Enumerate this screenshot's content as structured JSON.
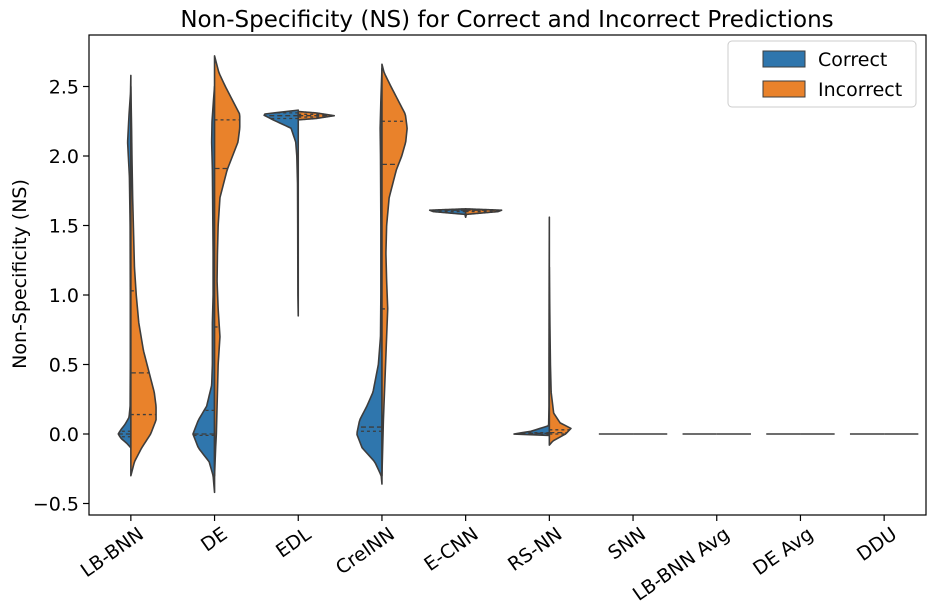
{
  "chart_data": {
    "type": "violin",
    "title": "Non-Specificity (NS) for Correct and Incorrect Predictions",
    "xlabel": "",
    "ylabel": "Non-Specificity (NS)",
    "ylim": [
      -0.55,
      2.8
    ],
    "yticks": [
      -0.5,
      0.0,
      0.5,
      1.0,
      1.5,
      2.0,
      2.5
    ],
    "ytick_labels": [
      "−0.5",
      "0.0",
      "0.5",
      "1.0",
      "1.5",
      "2.0",
      "2.5"
    ],
    "legend_position": "top-right",
    "series": [
      {
        "name": "Correct",
        "side": "left",
        "color": "#2f76ad"
      },
      {
        "name": "Incorrect",
        "side": "right",
        "color": "#e9822b"
      }
    ],
    "categories": [
      {
        "label": "LB-BNN",
        "correct": {
          "min": -0.1,
          "max": 2.58,
          "quartiles": [
            -0.02,
            0.0,
            0.02
          ],
          "profile": [
            [
              -0.1,
              0
            ],
            [
              -0.07,
              0.1
            ],
            [
              -0.03,
              0.28
            ],
            [
              0,
              0.35
            ],
            [
              0.03,
              0.28
            ],
            [
              0.07,
              0.16
            ],
            [
              0.12,
              0.05
            ],
            [
              0.2,
              0.02
            ],
            [
              0.5,
              0.015
            ],
            [
              1.0,
              0.015
            ],
            [
              1.5,
              0.02
            ],
            [
              1.85,
              0.04
            ],
            [
              2.0,
              0.07
            ],
            [
              2.1,
              0.09
            ],
            [
              2.3,
              0.05
            ],
            [
              2.45,
              0.01
            ],
            [
              2.58,
              0
            ]
          ]
        },
        "incorrect": {
          "min": -0.3,
          "max": 2.5,
          "quartiles": [
            0.14,
            0.44,
            1.03
          ],
          "profile": [
            [
              -0.3,
              0
            ],
            [
              -0.2,
              0.1
            ],
            [
              -0.1,
              0.3
            ],
            [
              0,
              0.55
            ],
            [
              0.1,
              0.7
            ],
            [
              0.2,
              0.7
            ],
            [
              0.3,
              0.65
            ],
            [
              0.4,
              0.55
            ],
            [
              0.6,
              0.35
            ],
            [
              0.8,
              0.22
            ],
            [
              1.0,
              0.15
            ],
            [
              1.2,
              0.1
            ],
            [
              1.5,
              0.07
            ],
            [
              1.7,
              0.05
            ],
            [
              1.85,
              0.04
            ],
            [
              2.0,
              0.03
            ],
            [
              2.2,
              0.02
            ],
            [
              2.35,
              0.01
            ],
            [
              2.5,
              0
            ]
          ]
        }
      },
      {
        "label": "DE",
        "correct": {
          "min": -0.42,
          "max": 2.5,
          "quartiles": [
            -0.01,
            0.0,
            0.17
          ],
          "profile": [
            [
              -0.42,
              0
            ],
            [
              -0.3,
              0.04
            ],
            [
              -0.2,
              0.15
            ],
            [
              -0.1,
              0.45
            ],
            [
              0,
              0.6
            ],
            [
              0.1,
              0.45
            ],
            [
              0.2,
              0.22
            ],
            [
              0.35,
              0.08
            ],
            [
              0.5,
              0.06
            ],
            [
              0.8,
              0.06
            ],
            [
              1.0,
              0.04
            ],
            [
              1.3,
              0.04
            ],
            [
              1.6,
              0.05
            ],
            [
              1.9,
              0.06
            ],
            [
              2.1,
              0.08
            ],
            [
              2.25,
              0.07
            ],
            [
              2.4,
              0.03
            ],
            [
              2.5,
              0
            ]
          ]
        },
        "incorrect": {
          "min": -0.3,
          "max": 2.72,
          "quartiles": [
            0.77,
            1.91,
            2.26
          ],
          "profile": [
            [
              -0.3,
              0
            ],
            [
              -0.1,
              0.03
            ],
            [
              0,
              0.05
            ],
            [
              0.2,
              0.07
            ],
            [
              0.5,
              0.1
            ],
            [
              0.7,
              0.15
            ],
            [
              0.9,
              0.1
            ],
            [
              1.1,
              0.07
            ],
            [
              1.3,
              0.08
            ],
            [
              1.5,
              0.1
            ],
            [
              1.7,
              0.15
            ],
            [
              1.9,
              0.35
            ],
            [
              2.0,
              0.5
            ],
            [
              2.1,
              0.65
            ],
            [
              2.2,
              0.7
            ],
            [
              2.3,
              0.7
            ],
            [
              2.4,
              0.5
            ],
            [
              2.5,
              0.3
            ],
            [
              2.6,
              0.12
            ],
            [
              2.72,
              0
            ]
          ]
        }
      },
      {
        "label": "EDL",
        "correct": {
          "min": 0.85,
          "max": 2.33,
          "quartiles": [
            2.27,
            2.29,
            2.31
          ],
          "profile": [
            [
              0.85,
              0
            ],
            [
              1.0,
              0.01
            ],
            [
              1.5,
              0.015
            ],
            [
              1.8,
              0.02
            ],
            [
              2.0,
              0.04
            ],
            [
              2.1,
              0.07
            ],
            [
              2.2,
              0.2
            ],
            [
              2.26,
              0.7
            ],
            [
              2.3,
              1.0
            ],
            [
              2.33,
              0
            ]
          ]
        },
        "incorrect": {
          "min": 2.26,
          "max": 2.32,
          "quartiles": [
            2.28,
            2.29,
            2.3
          ],
          "profile": [
            [
              2.26,
              0
            ],
            [
              2.27,
              0.5
            ],
            [
              2.29,
              1.0
            ],
            [
              2.31,
              0.5
            ],
            [
              2.32,
              0
            ]
          ]
        }
      },
      {
        "label": "CreINN",
        "correct": {
          "min": -0.36,
          "max": 2.63,
          "quartiles": [
            0.02,
            0.05,
            0.68
          ],
          "profile": [
            [
              -0.36,
              0
            ],
            [
              -0.3,
              0.02
            ],
            [
              -0.2,
              0.2
            ],
            [
              -0.1,
              0.55
            ],
            [
              0,
              0.7
            ],
            [
              0.1,
              0.62
            ],
            [
              0.2,
              0.42
            ],
            [
              0.3,
              0.25
            ],
            [
              0.5,
              0.1
            ],
            [
              0.7,
              0.04
            ],
            [
              1.0,
              0.03
            ],
            [
              1.5,
              0.03
            ],
            [
              2.0,
              0.04
            ],
            [
              2.2,
              0.05
            ],
            [
              2.4,
              0.03
            ],
            [
              2.63,
              0
            ]
          ]
        },
        "incorrect": {
          "min": -0.3,
          "max": 2.66,
          "quartiles": [
            0.9,
            1.94,
            2.25
          ],
          "profile": [
            [
              -0.3,
              0
            ],
            [
              -0.1,
              0.02
            ],
            [
              0.1,
              0.04
            ],
            [
              0.3,
              0.07
            ],
            [
              0.5,
              0.1
            ],
            [
              0.7,
              0.13
            ],
            [
              0.9,
              0.16
            ],
            [
              1.1,
              0.13
            ],
            [
              1.3,
              0.11
            ],
            [
              1.5,
              0.13
            ],
            [
              1.7,
              0.2
            ],
            [
              1.9,
              0.4
            ],
            [
              2.0,
              0.55
            ],
            [
              2.1,
              0.66
            ],
            [
              2.2,
              0.7
            ],
            [
              2.3,
              0.65
            ],
            [
              2.4,
              0.45
            ],
            [
              2.5,
              0.25
            ],
            [
              2.6,
              0.06
            ],
            [
              2.66,
              0
            ]
          ]
        }
      },
      {
        "label": "E-CNN",
        "correct": {
          "min": 1.56,
          "max": 1.62,
          "quartiles": [
            1.6,
            1.61,
            1.61
          ],
          "profile": [
            [
              1.56,
              0
            ],
            [
              1.58,
              0.02
            ],
            [
              1.6,
              0.9
            ],
            [
              1.61,
              1.0
            ],
            [
              1.62,
              0
            ]
          ]
        },
        "incorrect": {
          "min": 1.56,
          "max": 1.62,
          "quartiles": [
            1.6,
            1.61,
            1.61
          ],
          "profile": [
            [
              1.56,
              0
            ],
            [
              1.58,
              0.02
            ],
            [
              1.6,
              0.9
            ],
            [
              1.61,
              1.0
            ],
            [
              1.62,
              0
            ]
          ]
        }
      },
      {
        "label": "RS-NN",
        "correct": {
          "min": -0.01,
          "max": 1.56,
          "quartiles": [
            0.0,
            0.005,
            0.01
          ],
          "profile": [
            [
              -0.01,
              0
            ],
            [
              0,
              1.0
            ],
            [
              0.02,
              0.5
            ],
            [
              0.06,
              0.02
            ],
            [
              0.2,
              0.01
            ],
            [
              0.5,
              0.01
            ],
            [
              1.0,
              0.006
            ],
            [
              1.56,
              0
            ]
          ]
        },
        "incorrect": {
          "min": -0.08,
          "max": 1.2,
          "quartiles": [
            0.0,
            0.01,
            0.03
          ],
          "profile": [
            [
              -0.08,
              0
            ],
            [
              -0.05,
              0.1
            ],
            [
              0,
              0.45
            ],
            [
              0.04,
              0.6
            ],
            [
              0.08,
              0.3
            ],
            [
              0.15,
              0.12
            ],
            [
              0.3,
              0.05
            ],
            [
              0.5,
              0.03
            ],
            [
              0.8,
              0.015
            ],
            [
              1.2,
              0
            ]
          ]
        }
      },
      {
        "label": "SNN",
        "correct": {
          "min": 0,
          "max": 0,
          "quartiles": [
            0,
            0,
            0
          ],
          "profile": [
            [
              0,
              1.0
            ]
          ]
        },
        "incorrect": {
          "min": 0,
          "max": 0,
          "quartiles": [
            0,
            0,
            0
          ],
          "profile": [
            [
              0,
              1.0
            ]
          ]
        }
      },
      {
        "label": "LB-BNN Avg",
        "correct": {
          "min": 0,
          "max": 0,
          "quartiles": [
            0,
            0,
            0
          ],
          "profile": [
            [
              0,
              1.0
            ]
          ]
        },
        "incorrect": {
          "min": 0,
          "max": 0,
          "quartiles": [
            0,
            0,
            0
          ],
          "profile": [
            [
              0,
              1.0
            ]
          ]
        }
      },
      {
        "label": "DE Avg",
        "correct": {
          "min": 0,
          "max": 0,
          "quartiles": [
            0,
            0,
            0
          ],
          "profile": [
            [
              0,
              1.0
            ]
          ]
        },
        "incorrect": {
          "min": 0,
          "max": 0,
          "quartiles": [
            0,
            0,
            0
          ],
          "profile": [
            [
              0,
              1.0
            ]
          ]
        }
      },
      {
        "label": "DDU",
        "correct": {
          "min": 0,
          "max": 0,
          "quartiles": [
            0,
            0,
            0
          ],
          "profile": [
            [
              0,
              1.0
            ]
          ]
        },
        "incorrect": {
          "min": 0,
          "max": 0,
          "quartiles": [
            0,
            0,
            0
          ],
          "profile": [
            [
              0,
              1.0
            ]
          ]
        }
      }
    ]
  }
}
